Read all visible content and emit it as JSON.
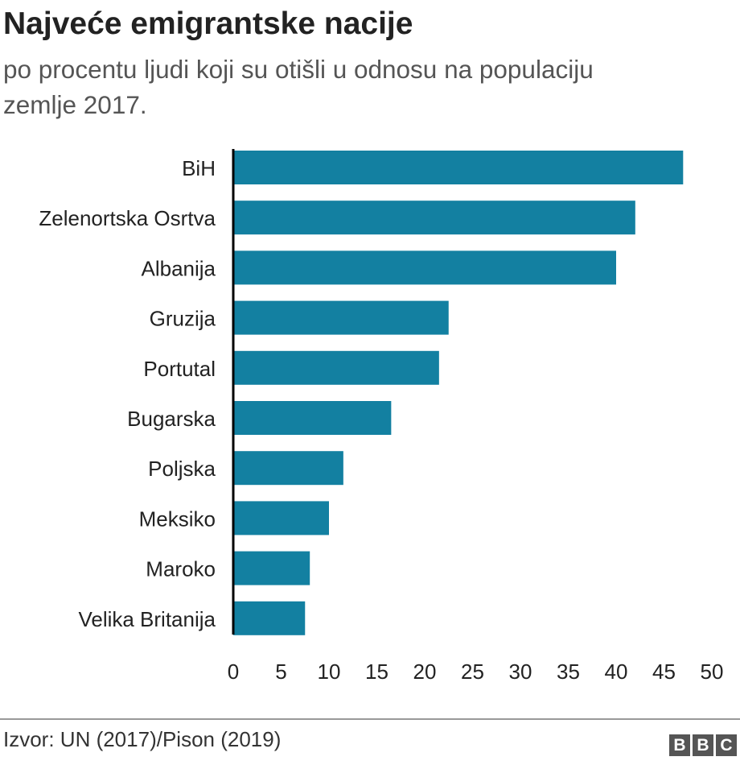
{
  "chart_data": {
    "type": "bar",
    "orientation": "horizontal",
    "title": "Najveće emigrantske nacije",
    "subtitle": "po procentu ljudi koji su otišli u odnosu na populaciju zemlje 2017.",
    "categories": [
      "BiH",
      "Zelenortska Osrtva",
      "Albanija",
      "Gruzija",
      "Portutal",
      "Bugarska",
      "Poljska",
      "Meksiko",
      "Maroko",
      "Velika Britanija"
    ],
    "values": [
      47,
      42,
      40,
      22.5,
      21.5,
      16.5,
      11.5,
      10,
      8,
      7.5
    ],
    "xlim": [
      0,
      50
    ],
    "xticks": [
      0,
      5,
      10,
      15,
      20,
      25,
      30,
      35,
      40,
      45,
      50
    ],
    "grid": false,
    "bar_color": "#1380a1",
    "axis_color": "#000000"
  },
  "footer": {
    "source": "Izvor: UN (2017)/Pison (2019)",
    "logo_letters": [
      "B",
      "B",
      "C"
    ]
  }
}
